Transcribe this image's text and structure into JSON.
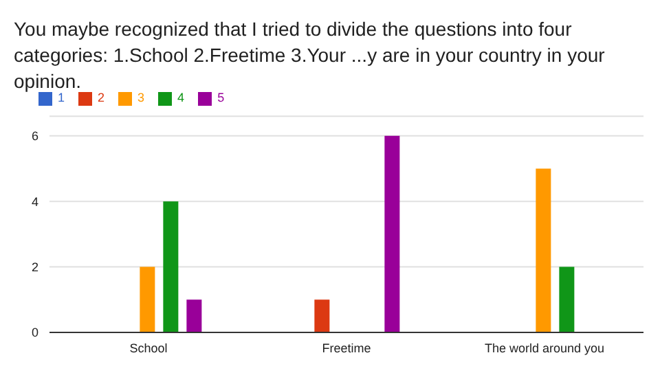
{
  "chart_data": {
    "type": "bar",
    "title": "You maybe recognized that I tried to divide the questions into four categories: 1.School 2.Freetime 3.Your ...y are in your country in your opinion.",
    "categories": [
      "School",
      "Freetime",
      "The world around you"
    ],
    "series": [
      {
        "name": "1",
        "color": "#3366cc",
        "values": [
          0,
          0,
          0
        ]
      },
      {
        "name": "2",
        "color": "#dc3912",
        "values": [
          0,
          1,
          0
        ]
      },
      {
        "name": "3",
        "color": "#ff9900",
        "values": [
          2,
          0,
          5
        ]
      },
      {
        "name": "4",
        "color": "#109618",
        "values": [
          4,
          0,
          2
        ]
      },
      {
        "name": "5",
        "color": "#990099",
        "values": [
          1,
          6,
          0
        ]
      }
    ],
    "ylim": [
      0,
      6.6
    ],
    "yticks": [
      0,
      2,
      4,
      6
    ],
    "grid": "y",
    "legend": "top left"
  }
}
